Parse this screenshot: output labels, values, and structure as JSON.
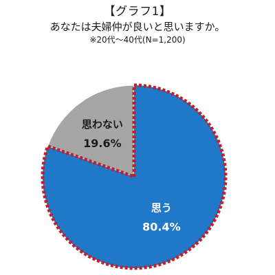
{
  "chart_data": {
    "type": "pie",
    "title": "【グラフ1】",
    "subtitle": "あなたは夫婦仲が良いと思いますか。",
    "note": "※20代～40代(N=1,200)",
    "slices": [
      {
        "label": "思う",
        "value": 80.4,
        "value_label": "80.4%",
        "color": "#1f78c8",
        "text_color": "#ffffff",
        "highlighted": true
      },
      {
        "label": "思わない",
        "value": 19.6,
        "value_label": "19.6%",
        "color": "#a6a6a6",
        "text_color": "#1a1a1a",
        "highlighted": false
      }
    ],
    "highlight_border_color": "#c0202a",
    "start": "top, clockwise"
  }
}
